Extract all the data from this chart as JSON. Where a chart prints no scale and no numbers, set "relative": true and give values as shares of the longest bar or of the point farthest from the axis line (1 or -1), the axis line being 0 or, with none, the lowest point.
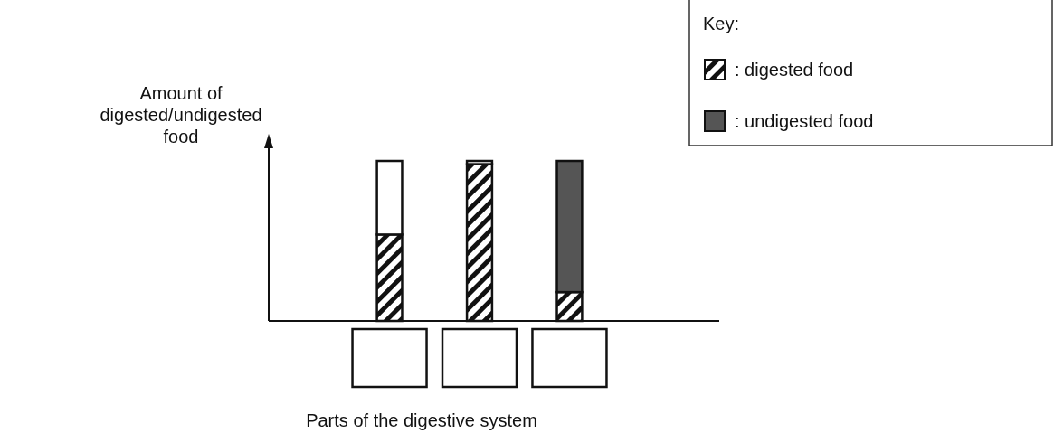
{
  "chart_data": {
    "type": "bar",
    "relative": true,
    "stacked": true,
    "categories": [
      null,
      null,
      null
    ],
    "xlabel": "Parts of the digestive system",
    "ylabel": "Amount of digested/undigested food",
    "legend_title": "Key:",
    "legend": "top right",
    "series": [
      {
        "name": ": digested food",
        "color": "#111111",
        "values": [
          0.54,
          0.98,
          0.18
        ]
      },
      {
        "name": ": undigested food",
        "color": "#555555",
        "values": [
          0,
          0,
          0.82
        ]
      },
      {
        "color": "#ffffff",
        "values": [
          0.46,
          0.02,
          0
        ]
      }
    ]
  }
}
